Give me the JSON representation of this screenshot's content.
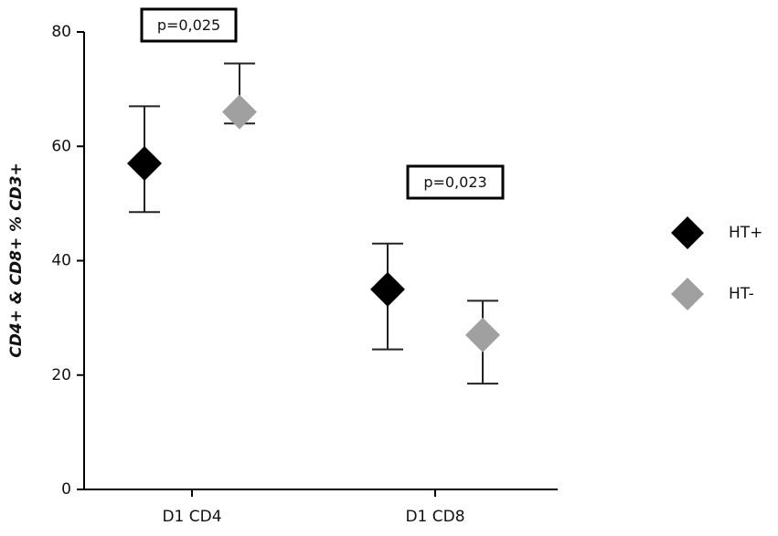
{
  "chart_data": {
    "type": "scatter",
    "y_label": "CD4+ & CD8+ % CD3+",
    "categories": [
      "D1 CD4",
      "D1 CD8"
    ],
    "series": [
      {
        "name": "HT+",
        "color": "#000000",
        "values": [
          57,
          35
        ],
        "lower": [
          48.5,
          24.5
        ],
        "upper": [
          67,
          43
        ]
      },
      {
        "name": "HT-",
        "color": "#a0a0a0",
        "values": [
          66,
          27
        ],
        "lower": [
          64,
          18.5
        ],
        "upper": [
          74.5,
          33
        ]
      }
    ],
    "annotations": [
      "p=0,025",
      "p=0,023"
    ],
    "ylim": [
      0,
      80
    ],
    "yticks": [
      0,
      20,
      40,
      60,
      80
    ],
    "legend": "right"
  }
}
